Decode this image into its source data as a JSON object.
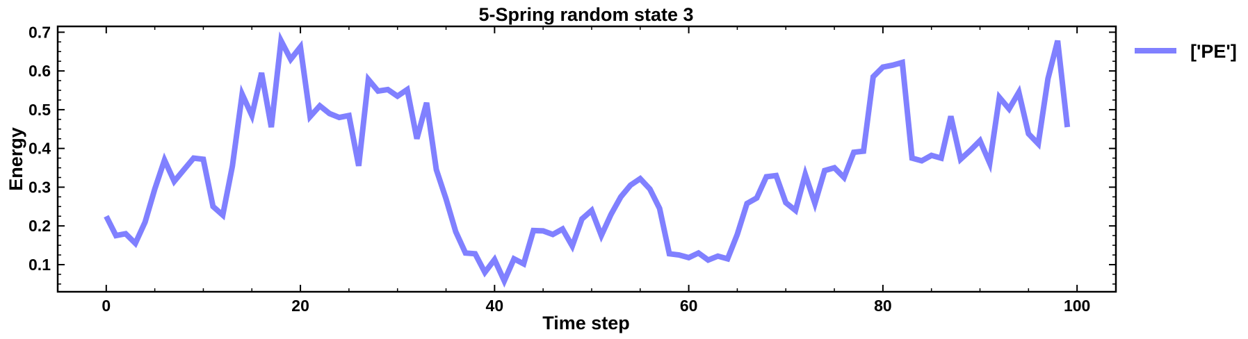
{
  "chart_data": {
    "type": "line",
    "title": "5-Spring random state 3",
    "xlabel": "Time step",
    "ylabel": "Energy",
    "xlim": [
      -5,
      104
    ],
    "ylim": [
      0.03,
      0.715
    ],
    "xticks": [
      0,
      20,
      40,
      60,
      80,
      100
    ],
    "xtick_labels": [
      "0",
      "20",
      "40",
      "60",
      "80",
      "100"
    ],
    "yticks": [
      0.1,
      0.2,
      0.3,
      0.4,
      0.5,
      0.6,
      0.7
    ],
    "ytick_labels": [
      "0.1",
      "0.2",
      "0.3",
      "0.4",
      "0.5",
      "0.6",
      "0.7"
    ],
    "grid": false,
    "legend_position": "outside-right",
    "series": [
      {
        "name": "['PE']",
        "color": "#8080ff",
        "x": [
          0,
          1,
          2,
          3,
          4,
          5,
          6,
          7,
          8,
          9,
          10,
          11,
          12,
          13,
          14,
          15,
          16,
          17,
          18,
          19,
          20,
          21,
          22,
          23,
          24,
          25,
          26,
          27,
          28,
          29,
          30,
          31,
          32,
          33,
          34,
          35,
          36,
          37,
          38,
          39,
          40,
          41,
          42,
          43,
          44,
          45,
          46,
          47,
          48,
          49,
          50,
          51,
          52,
          53,
          54,
          55,
          56,
          57,
          58,
          59,
          60,
          61,
          62,
          63,
          64,
          65,
          66,
          67,
          68,
          69,
          70,
          71,
          72,
          73,
          74,
          75,
          76,
          77,
          78,
          79,
          80,
          81,
          82,
          83,
          84,
          85,
          86,
          87,
          88,
          89,
          90,
          91,
          92,
          93,
          94,
          95,
          96,
          97,
          98,
          99
        ],
        "y": [
          0.225,
          0.175,
          0.18,
          0.155,
          0.21,
          0.295,
          0.37,
          0.315,
          0.345,
          0.375,
          0.372,
          0.25,
          0.228,
          0.355,
          0.54,
          0.485,
          0.595,
          0.455,
          0.678,
          0.63,
          0.662,
          0.482,
          0.51,
          0.49,
          0.48,
          0.485,
          0.355,
          0.578,
          0.548,
          0.552,
          0.535,
          0.552,
          0.425,
          0.518,
          0.345,
          0.27,
          0.185,
          0.13,
          0.128,
          0.08,
          0.113,
          0.058,
          0.115,
          0.102,
          0.188,
          0.187,
          0.178,
          0.192,
          0.148,
          0.218,
          0.24,
          0.175,
          0.23,
          0.275,
          0.305,
          0.322,
          0.295,
          0.245,
          0.128,
          0.125,
          0.118,
          0.13,
          0.112,
          0.122,
          0.115,
          0.178,
          0.258,
          0.272,
          0.327,
          0.33,
          0.26,
          0.24,
          0.333,
          0.258,
          0.343,
          0.35,
          0.325,
          0.39,
          0.393,
          0.585,
          0.61,
          0.615,
          0.622,
          0.375,
          0.368,
          0.382,
          0.375,
          0.483,
          0.372,
          0.395,
          0.42,
          0.362,
          0.532,
          0.502,
          0.545,
          0.438,
          0.412,
          0.58,
          0.678,
          0.455
        ]
      }
    ]
  }
}
